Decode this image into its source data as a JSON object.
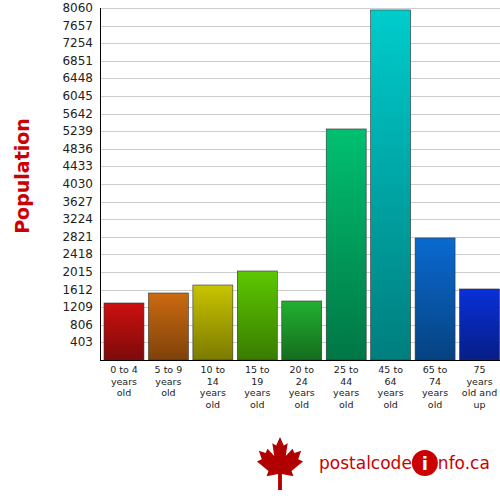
{
  "chart_data": {
    "type": "bar",
    "ylabel": "Population",
    "categories": [
      "0 to 4 years old",
      "5 to 9 years old",
      "10 to 14 years old",
      "15 to 19 years old",
      "20 to 24 years old",
      "25 to 44 years old",
      "45 to 64 years old",
      "65 to 74 years old",
      "75 years old and up"
    ],
    "values": [
      1305,
      1534,
      1717,
      2038,
      1351,
      5290,
      8015,
      2794,
      1626
    ],
    "colors": [
      "#cc1010",
      "#cc6a10",
      "#c8c400",
      "#5cc800",
      "#22b030",
      "#00c070",
      "#00cccc",
      "#0a6ad0",
      "#0a30d8"
    ],
    "ylim": [
      0,
      8060
    ],
    "yticks": [
      403,
      806,
      1209,
      1612,
      2015,
      2418,
      2821,
      3224,
      3627,
      4030,
      4433,
      4836,
      5239,
      5642,
      6045,
      6448,
      6851,
      7254,
      7657,
      8060
    ],
    "grid": true
  },
  "logo": {
    "text": "postalcode",
    "badge": "i",
    "suffix": "nfo.ca"
  }
}
